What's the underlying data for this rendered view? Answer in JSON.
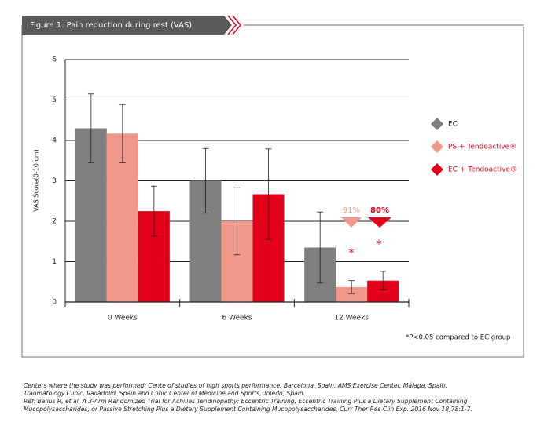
{
  "chart_data": {
    "type": "bar",
    "title": "Figure 1: Pain reduction during rest (VAS)",
    "y_label": "VAS Score(0-10 cm)",
    "categories": [
      "0 Weeks",
      "6 Weeks",
      "12 Weeks"
    ],
    "series": [
      {
        "name": "EC",
        "color": "#808080",
        "values": [
          4.3,
          3.0,
          1.35
        ],
        "errors": [
          0.85,
          0.8,
          0.88
        ]
      },
      {
        "name": "PS + Tendoactive®",
        "color": "#f0998a",
        "values": [
          4.17,
          2.0,
          0.37
        ],
        "errors": [
          0.72,
          0.83,
          0.16
        ]
      },
      {
        "name": "EC + Tendoactive®",
        "color": "#e3001b",
        "values": [
          2.25,
          2.67,
          0.53
        ],
        "errors": [
          0.62,
          1.12,
          0.23
        ]
      }
    ],
    "ylim": [
      0,
      6
    ],
    "yticks": [
      0,
      1,
      2,
      3,
      4,
      5,
      6
    ],
    "grid": true,
    "legend": "right",
    "annotations": [
      "91%",
      "80%",
      "*",
      "*",
      "*P<0.05 compared to EC group"
    ],
    "footnote": [
      "Centers where the study was performed: Cente of studies of high sports performance, Barcelona, Spain, AMS Exercise Center, Málaga, Spain,",
      "Traumatology Clinic,  Valladolid, Spain and Clinic Center of Medicine and Sports, Toledo, Spain.",
      "Ref: Balius R, et al. A 3-Arm Randomized Trial for Achilles Tendinopathy: Eccentric Training, Eccentric Training Plus a Dietary Supplement Containing",
      "Mucopolysaccharides, or Passive Stretching Plus a Dietary Supplement Containing Mucopolysaccharides. Curr Ther Res Clin Exp. 2016 Nov 18;78:1-7."
    ]
  }
}
